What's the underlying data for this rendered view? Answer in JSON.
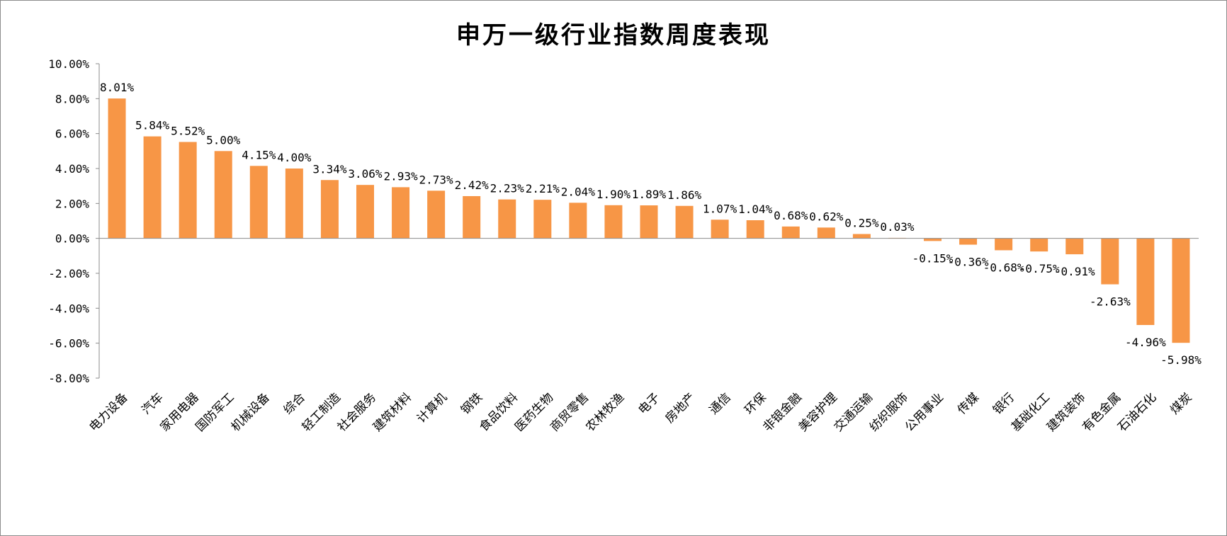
{
  "chart_data": {
    "type": "bar",
    "title": "申万一级行业指数周度表现",
    "xlabel": "",
    "ylabel": "",
    "ylim": [
      -8,
      10
    ],
    "ytick_step": 2,
    "y_tick_format": "percent_2dp",
    "grid": false,
    "legend": "none",
    "bar_color": "#F79646",
    "categories": [
      "电力设备",
      "汽车",
      "家用电器",
      "国防军工",
      "机械设备",
      "综合",
      "轻工制造",
      "社会服务",
      "建筑材料",
      "计算机",
      "钢铁",
      "食品饮料",
      "医药生物",
      "商贸零售",
      "农林牧渔",
      "电子",
      "房地产",
      "通信",
      "环保",
      "非银金融",
      "美容护理",
      "交通运输",
      "纺织服饰",
      "公用事业",
      "传媒",
      "银行",
      "基础化工",
      "建筑装饰",
      "有色金属",
      "石油石化",
      "煤炭"
    ],
    "values": [
      8.01,
      5.84,
      5.52,
      5.0,
      4.15,
      4.0,
      3.34,
      3.06,
      2.93,
      2.73,
      2.42,
      2.23,
      2.21,
      2.04,
      1.9,
      1.89,
      1.86,
      1.07,
      1.04,
      0.68,
      0.62,
      0.25,
      0.03,
      -0.15,
      -0.36,
      -0.68,
      -0.75,
      -0.91,
      -2.63,
      -4.96,
      -5.98
    ],
    "data_labels": [
      "8.01%",
      "5.84%",
      "5.52%",
      "5.00%",
      "4.15%",
      "4.00%",
      "3.34%",
      "3.06%",
      "2.93%",
      "2.73%",
      "2.42%",
      "2.23%",
      "2.21%",
      "2.04%",
      "1.90%",
      "1.89%",
      "1.86%",
      "1.07%",
      "1.04%",
      "0.68%",
      "0.62%",
      "0.25%",
      "0.03%",
      "-0.15%",
      "-0.36%",
      "-0.68%",
      "-0.75%",
      "-0.91%",
      "-2.63%",
      "-4.96%",
      "-5.98%"
    ]
  }
}
